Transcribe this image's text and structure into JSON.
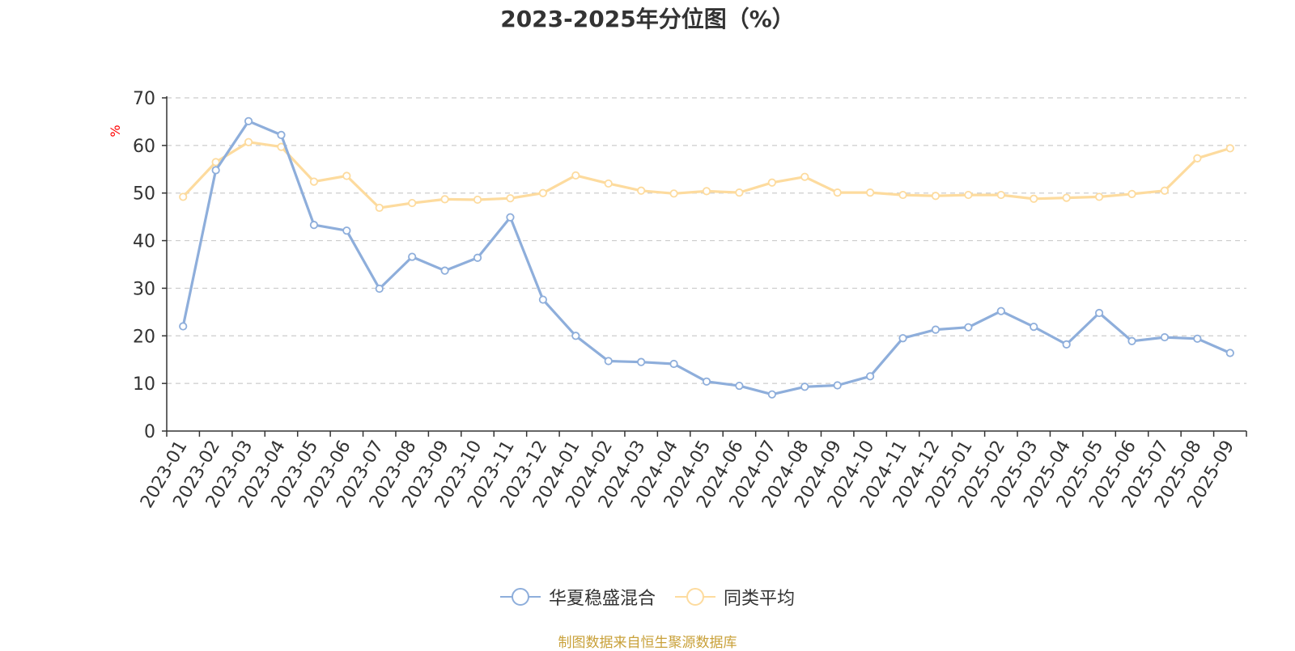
{
  "chart_data": {
    "type": "line",
    "title": "2023-2025年分位图（%）",
    "ylabel": "%",
    "xlabel": "",
    "ylim": [
      0,
      70
    ],
    "yticks": [
      0,
      10,
      20,
      30,
      40,
      50,
      60,
      70
    ],
    "grid": true,
    "legend_position": "bottom-center",
    "categories": [
      "2023-01",
      "2023-02",
      "2023-03",
      "2023-04",
      "2023-05",
      "2023-06",
      "2023-07",
      "2023-08",
      "2023-09",
      "2023-10",
      "2023-11",
      "2023-12",
      "2024-01",
      "2024-02",
      "2024-03",
      "2024-04",
      "2024-05",
      "2024-06",
      "2024-07",
      "2024-08",
      "2024-09",
      "2024-10",
      "2024-11",
      "2024-12",
      "2025-01",
      "2025-02",
      "2025-03",
      "2025-04",
      "2025-05",
      "2025-06",
      "2025-07",
      "2025-08",
      "2025-09"
    ],
    "series": [
      {
        "name": "华夏稳盛混合",
        "color": "#8eaedb",
        "values": [
          22.0,
          54.8,
          65.1,
          62.2,
          43.3,
          42.1,
          29.9,
          36.6,
          33.7,
          36.4,
          44.9,
          27.6,
          20.0,
          14.7,
          14.5,
          14.1,
          10.4,
          9.5,
          7.7,
          9.3,
          9.6,
          11.5,
          19.5,
          21.3,
          21.8,
          25.2,
          21.9,
          18.2,
          24.8,
          18.9,
          19.7,
          19.4,
          16.4
        ]
      },
      {
        "name": "同类平均",
        "color": "#fddb9e",
        "values": [
          49.2,
          56.5,
          60.7,
          59.7,
          52.4,
          53.6,
          46.9,
          47.9,
          48.7,
          48.6,
          48.9,
          50.0,
          53.7,
          52.0,
          50.5,
          49.9,
          50.4,
          50.1,
          52.2,
          53.4,
          50.1,
          50.1,
          49.6,
          49.4,
          49.6,
          49.6,
          48.8,
          49.0,
          49.2,
          49.8,
          50.5,
          57.3,
          59.4
        ]
      }
    ]
  },
  "source_text": "制图数据来自恒生聚源数据库"
}
